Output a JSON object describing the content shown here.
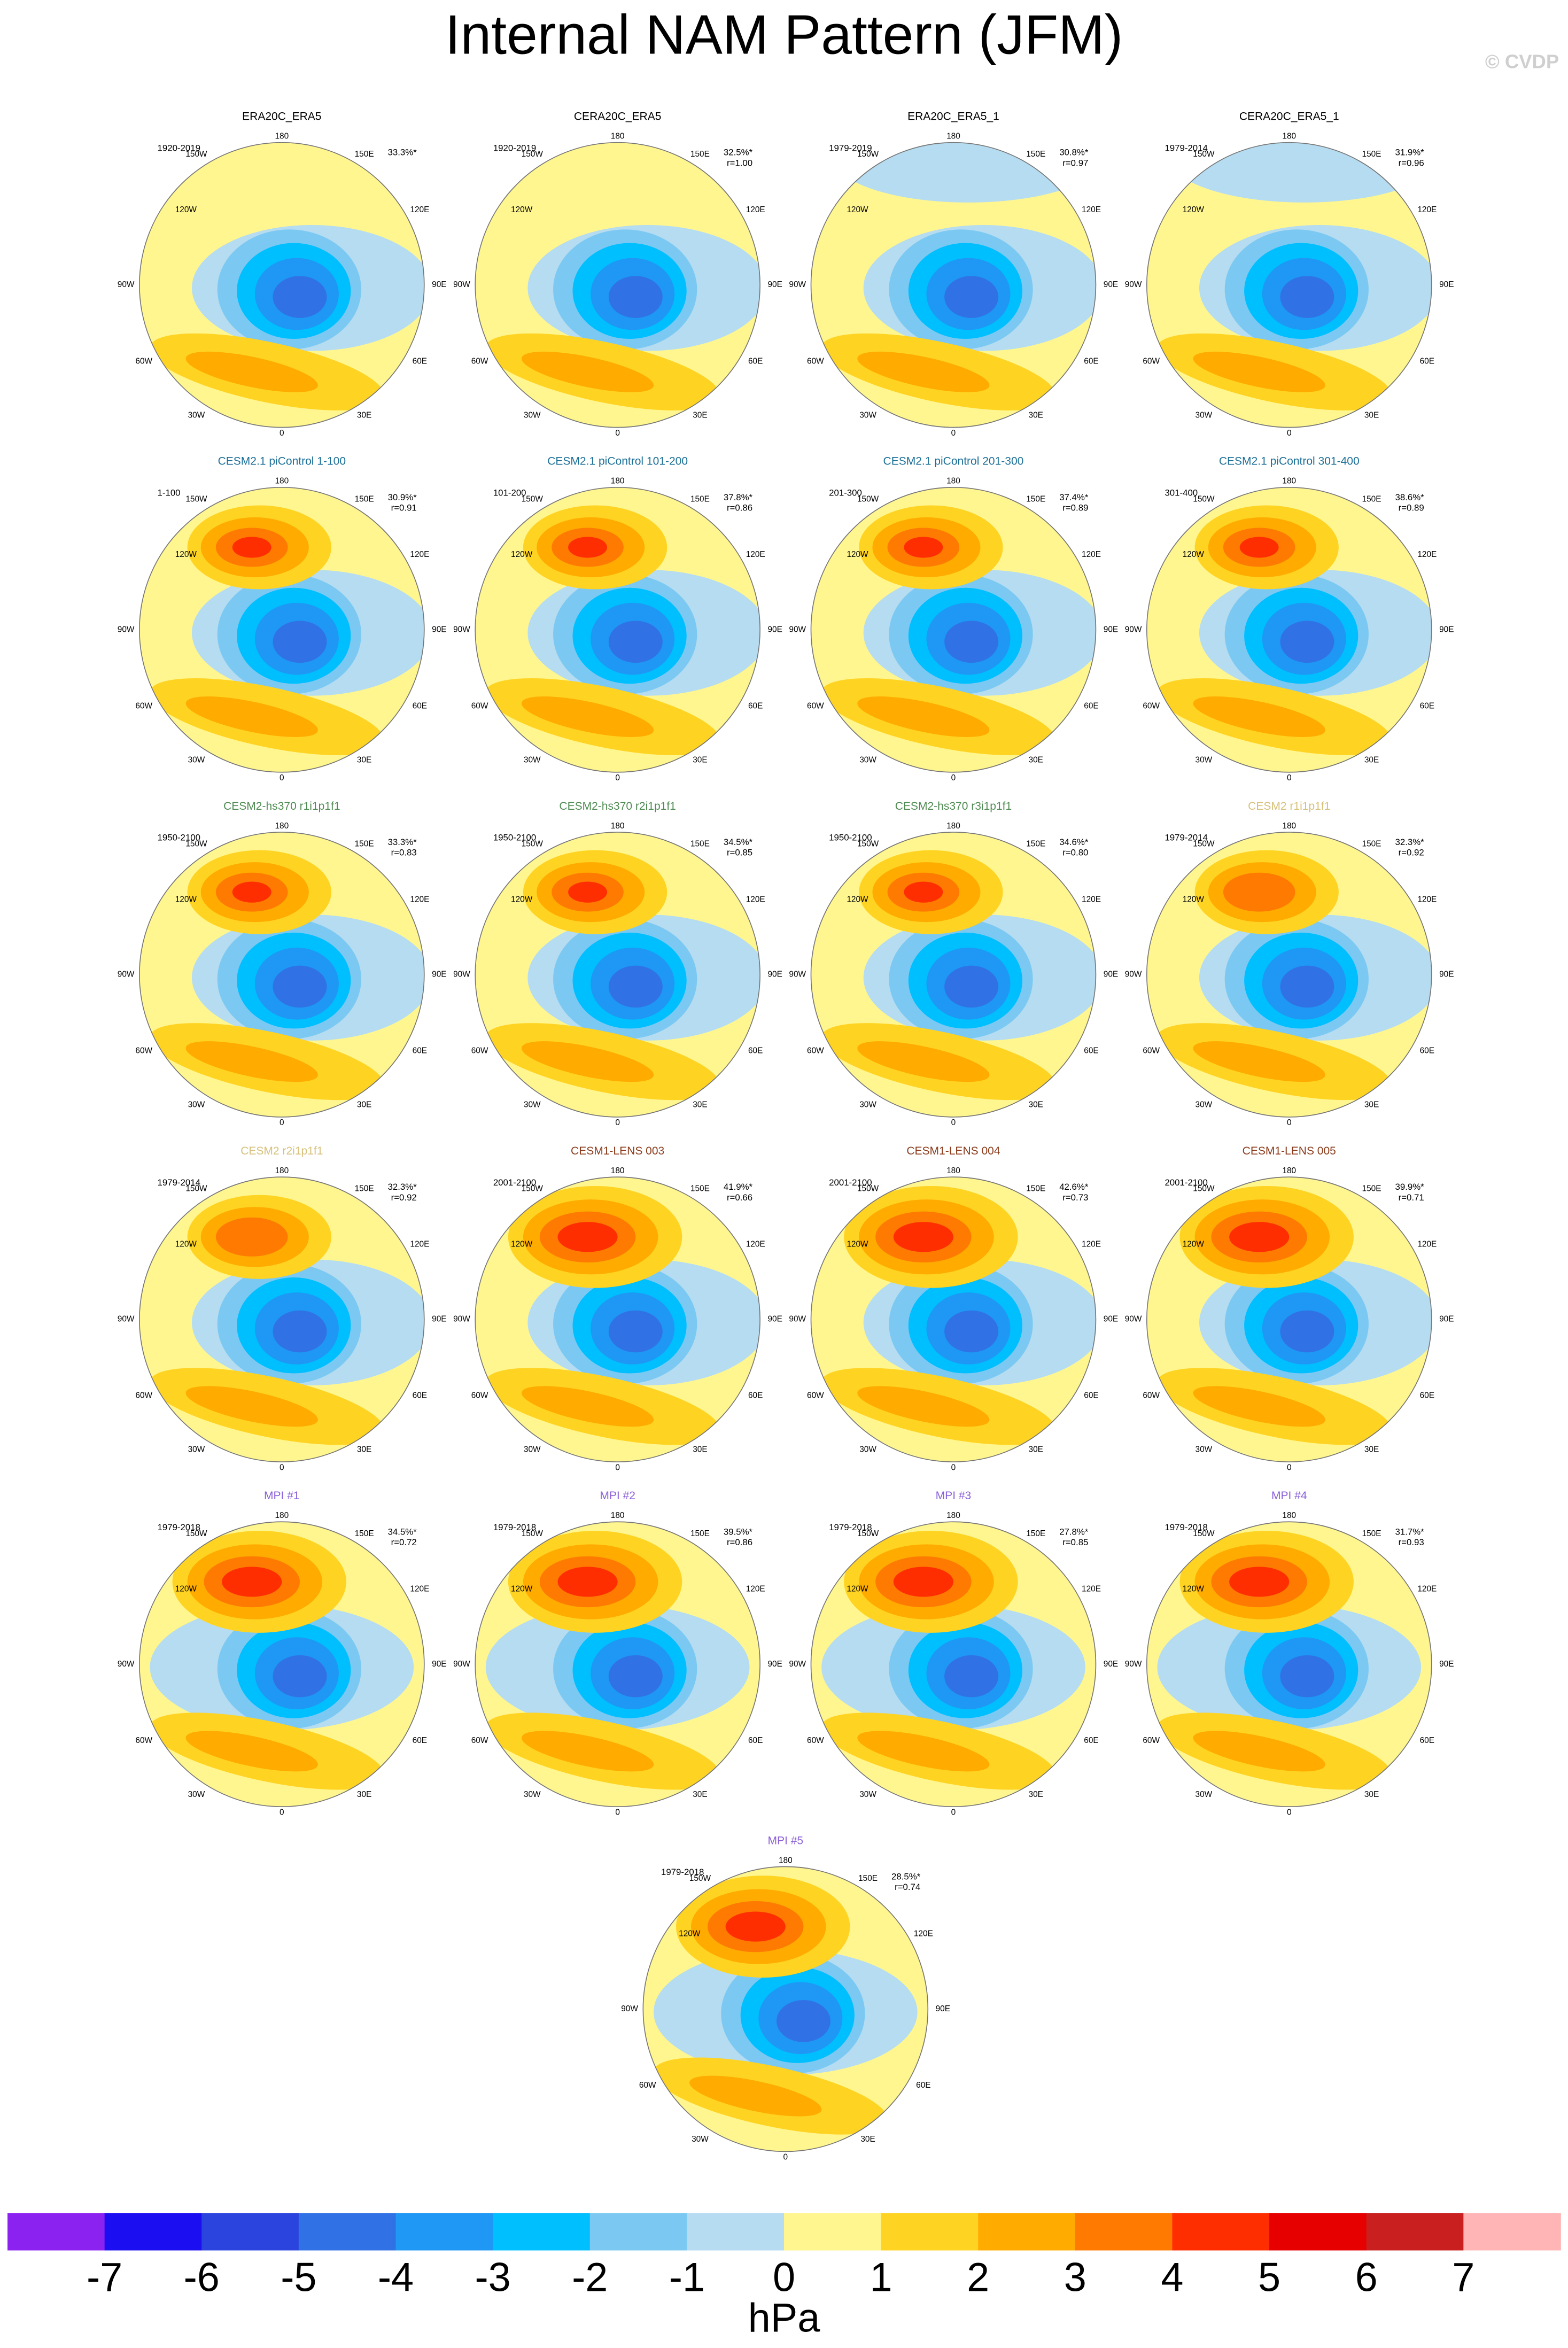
{
  "title": "Internal NAM Pattern (JFM)",
  "copyright": "© CVDP",
  "lon_labels": [
    "180",
    "150W",
    "150E",
    "120W",
    "120E",
    "90W",
    "90E",
    "60W",
    "60E",
    "30W",
    "30E",
    "0"
  ],
  "panels": [
    {
      "title": "ERA20C_ERA5",
      "title_color": "#000000",
      "period": "1920-2019",
      "pct": "33.3%*"
    },
    {
      "title": "CERA20C_ERA5",
      "title_color": "#000000",
      "period": "1920-2019",
      "pct": "32.5%*",
      "r": "r=1.00"
    },
    {
      "title": "ERA20C_ERA5_1",
      "title_color": "#000000",
      "period": "1979-2019",
      "pct": "30.8%*",
      "r": "r=0.97"
    },
    {
      "title": "CERA20C_ERA5_1",
      "title_color": "#000000",
      "period": "1979-2014",
      "pct": "31.9%*",
      "r": "r=0.96"
    },
    {
      "title": "CESM2.1 piControl 1-100",
      "title_color": "#1b6f97",
      "period": "1-100",
      "pct": "30.9%*",
      "r": "r=0.91"
    },
    {
      "title": "CESM2.1 piControl 101-200",
      "title_color": "#1b6f97",
      "period": "101-200",
      "pct": "37.8%*",
      "r": "r=0.86"
    },
    {
      "title": "CESM2.1 piControl 201-300",
      "title_color": "#1b6f97",
      "period": "201-300",
      "pct": "37.4%*",
      "r": "r=0.89"
    },
    {
      "title": "CESM2.1 piControl 301-400",
      "title_color": "#1b6f97",
      "period": "301-400",
      "pct": "38.6%*",
      "r": "r=0.89"
    },
    {
      "title": "CESM2-hs370 r1i1p1f1",
      "title_color": "#4f8b52",
      "period": "1950-2100",
      "pct": "33.3%*",
      "r": "r=0.83"
    },
    {
      "title": "CESM2-hs370 r2i1p1f1",
      "title_color": "#4f8b52",
      "period": "1950-2100",
      "pct": "34.5%*",
      "r": "r=0.85"
    },
    {
      "title": "CESM2-hs370 r3i1p1f1",
      "title_color": "#4f8b52",
      "period": "1950-2100",
      "pct": "34.6%*",
      "r": "r=0.80"
    },
    {
      "title": "CESM2 r1i1p1f1",
      "title_color": "#d6c07a",
      "period": "1979-2014",
      "pct": "32.3%*",
      "r": "r=0.92"
    },
    {
      "title": "CESM2 r2i1p1f1",
      "title_color": "#d6c07a",
      "period": "1979-2014",
      "pct": "32.3%*",
      "r": "r=0.92"
    },
    {
      "title": "CESM1-LENS 003",
      "title_color": "#8b3b1b",
      "period": "2001-2100",
      "pct": "41.9%*",
      "r": "r=0.66"
    },
    {
      "title": "CESM1-LENS 004",
      "title_color": "#8b3b1b",
      "period": "2001-2100",
      "pct": "42.6%*",
      "r": "r=0.73"
    },
    {
      "title": "CESM1-LENS 005",
      "title_color": "#8b3b1b",
      "period": "2001-2100",
      "pct": "39.9%*",
      "r": "r=0.71"
    },
    {
      "title": "MPI #1",
      "title_color": "#8a5fd8",
      "period": "1979-2018",
      "pct": "34.5%*",
      "r": "r=0.72"
    },
    {
      "title": "MPI #2",
      "title_color": "#8a5fd8",
      "period": "1979-2018",
      "pct": "39.5%*",
      "r": "r=0.86"
    },
    {
      "title": "MPI #3",
      "title_color": "#8a5fd8",
      "period": "1979-2018",
      "pct": "27.8%*",
      "r": "r=0.85"
    },
    {
      "title": "MPI #4",
      "title_color": "#8a5fd8",
      "period": "1979-2018",
      "pct": "31.7%*",
      "r": "r=0.93"
    },
    {
      "title": "MPI #5",
      "title_color": "#8a5fd8",
      "period": "1979-2018",
      "pct": "28.5%*",
      "r": "r=0.74"
    }
  ],
  "colorbar": {
    "colors": [
      "#8c22f0",
      "#1b0ff2",
      "#2c44de",
      "#3072e6",
      "#1e97f5",
      "#00bfff",
      "#7bc9f2",
      "#b5dcf0",
      "#fff68f",
      "#ffd322",
      "#ffab00",
      "#ff7a00",
      "#ff2e00",
      "#e60000",
      "#c91f1f",
      "#ffb5b5"
    ],
    "ticks": [
      -7,
      -6,
      -5,
      -4,
      -3,
      -2,
      -1,
      0,
      1,
      2,
      3,
      4,
      5,
      6,
      7
    ],
    "label": "hPa"
  }
}
